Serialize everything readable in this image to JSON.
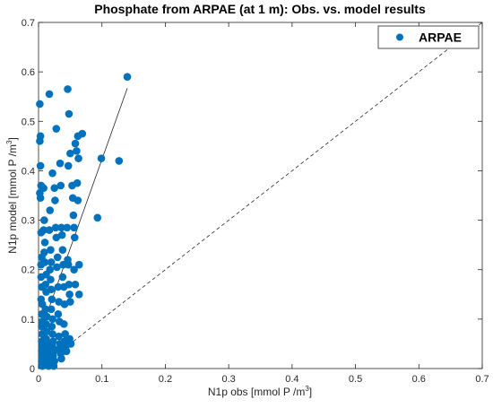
{
  "chart_data": {
    "type": "scatter",
    "title": "Phosphate from ARPAE (at 1 m): Obs. vs. model results",
    "xlabel": "N1p obs [mmol P /m",
    "ylabel": "N1p model [mmol P /m",
    "unit_superscript": "3",
    "xlim": [
      0,
      0.7
    ],
    "ylim": [
      0,
      0.7
    ],
    "xticks": [
      "0",
      "0.1",
      "0.2",
      "0.3",
      "0.4",
      "0.5",
      "0.6",
      "0.7"
    ],
    "yticks": [
      "0",
      "0.1",
      "0.2",
      "0.3",
      "0.4",
      "0.5",
      "0.6",
      "0.7"
    ],
    "grid": false,
    "legend_position": "top-right",
    "series": [
      {
        "name": "ARPAE",
        "color": "#0072BD",
        "points": [
          [
            0.002,
            0.535
          ],
          [
            0.003,
            0.47
          ],
          [
            0.002,
            0.46
          ],
          [
            0.003,
            0.41
          ],
          [
            0.004,
            0.37
          ],
          [
            0.002,
            0.355
          ],
          [
            0.003,
            0.345
          ],
          [
            0.004,
            0.275
          ],
          [
            0.005,
            0.225
          ],
          [
            0.004,
            0.21
          ],
          [
            0.004,
            0.185
          ],
          [
            0.005,
            0.165
          ],
          [
            0.004,
            0.14
          ],
          [
            0.006,
            0.13
          ],
          [
            0.005,
            0.11
          ],
          [
            0.006,
            0.095
          ],
          [
            0.005,
            0.085
          ],
          [
            0.006,
            0.07
          ],
          [
            0.005,
            0.055
          ],
          [
            0.006,
            0.045
          ],
          [
            0.005,
            0.035
          ],
          [
            0.006,
            0.025
          ],
          [
            0.005,
            0.015
          ],
          [
            0.006,
            0.005
          ],
          [
            0.008,
            0.365
          ],
          [
            0.009,
            0.3
          ],
          [
            0.008,
            0.28
          ],
          [
            0.01,
            0.255
          ],
          [
            0.009,
            0.235
          ],
          [
            0.01,
            0.215
          ],
          [
            0.012,
            0.19
          ],
          [
            0.011,
            0.17
          ],
          [
            0.012,
            0.155
          ],
          [
            0.011,
            0.12
          ],
          [
            0.013,
            0.105
          ],
          [
            0.012,
            0.09
          ],
          [
            0.013,
            0.075
          ],
          [
            0.012,
            0.06
          ],
          [
            0.014,
            0.05
          ],
          [
            0.013,
            0.04
          ],
          [
            0.014,
            0.03
          ],
          [
            0.015,
            0.02
          ],
          [
            0.014,
            0.01
          ],
          [
            0.016,
            0.005
          ],
          [
            0.017,
            0.555
          ],
          [
            0.018,
            0.32
          ],
          [
            0.017,
            0.28
          ],
          [
            0.019,
            0.24
          ],
          [
            0.02,
            0.215
          ],
          [
            0.018,
            0.2
          ],
          [
            0.019,
            0.18
          ],
          [
            0.02,
            0.16
          ],
          [
            0.021,
            0.14
          ],
          [
            0.02,
            0.12
          ],
          [
            0.022,
            0.1
          ],
          [
            0.021,
            0.085
          ],
          [
            0.022,
            0.07
          ],
          [
            0.023,
            0.055
          ],
          [
            0.022,
            0.045
          ],
          [
            0.024,
            0.035
          ],
          [
            0.023,
            0.025
          ],
          [
            0.025,
            0.015
          ],
          [
            0.024,
            0.005
          ],
          [
            0.022,
            0.395
          ],
          [
            0.025,
            0.365
          ],
          [
            0.026,
            0.34
          ],
          [
            0.027,
            0.285
          ],
          [
            0.028,
            0.265
          ],
          [
            0.028,
            0.485
          ],
          [
            0.03,
            0.225
          ],
          [
            0.029,
            0.205
          ],
          [
            0.031,
            0.165
          ],
          [
            0.032,
            0.135
          ],
          [
            0.031,
            0.11
          ],
          [
            0.033,
            0.095
          ],
          [
            0.032,
            0.065
          ],
          [
            0.034,
            0.05
          ],
          [
            0.033,
            0.04
          ],
          [
            0.035,
            0.03
          ],
          [
            0.036,
            0.02
          ],
          [
            0.034,
            0.415
          ],
          [
            0.035,
            0.37
          ],
          [
            0.036,
            0.285
          ],
          [
            0.037,
            0.27
          ],
          [
            0.038,
            0.24
          ],
          [
            0.039,
            0.21
          ],
          [
            0.038,
            0.185
          ],
          [
            0.04,
            0.165
          ],
          [
            0.041,
            0.13
          ],
          [
            0.04,
            0.09
          ],
          [
            0.042,
            0.07
          ],
          [
            0.041,
            0.055
          ],
          [
            0.043,
            0.045
          ],
          [
            0.044,
            0.035
          ],
          [
            0.046,
            0.565
          ],
          [
            0.048,
            0.515
          ],
          [
            0.047,
            0.41
          ],
          [
            0.045,
            0.285
          ],
          [
            0.046,
            0.22
          ],
          [
            0.047,
            0.21
          ],
          [
            0.048,
            0.17
          ],
          [
            0.049,
            0.15
          ],
          [
            0.05,
            0.135
          ],
          [
            0.049,
            0.06
          ],
          [
            0.051,
            0.05
          ],
          [
            0.05,
            0.435
          ],
          [
            0.053,
            0.37
          ],
          [
            0.054,
            0.345
          ],
          [
            0.055,
            0.31
          ],
          [
            0.056,
            0.285
          ],
          [
            0.057,
            0.265
          ],
          [
            0.056,
            0.2
          ],
          [
            0.058,
            0.17
          ],
          [
            0.058,
            0.455
          ],
          [
            0.06,
            0.44
          ],
          [
            0.061,
            0.375
          ],
          [
            0.062,
            0.34
          ],
          [
            0.062,
            0.47
          ],
          [
            0.063,
            0.425
          ],
          [
            0.064,
            0.21
          ],
          [
            0.064,
            0.15
          ],
          [
            0.069,
            0.475
          ],
          [
            0.093,
            0.305
          ],
          [
            0.099,
            0.425
          ],
          [
            0.127,
            0.42
          ],
          [
            0.14,
            0.59
          ]
        ]
      }
    ],
    "fit_line": {
      "x": [
        0,
        0.14
      ],
      "y": [
        0.063,
        0.567
      ]
    },
    "reference_line": {
      "x": [
        0,
        0.7
      ],
      "y": [
        0,
        0.7
      ],
      "style": "dashed"
    }
  }
}
